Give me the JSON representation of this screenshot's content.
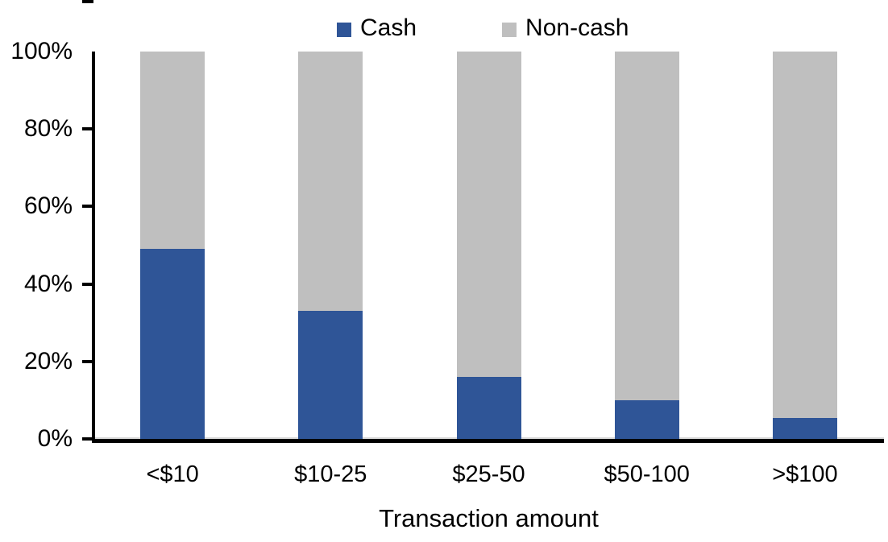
{
  "chart_data": {
    "type": "bar",
    "stacked": true,
    "orientation": "vertical",
    "categories": [
      "<$10",
      "$10-25",
      "$25-50",
      "$50-100",
      ">$100"
    ],
    "series": [
      {
        "name": "Cash",
        "color": "#2F5597",
        "values": [
          49,
          33,
          16,
          10,
          5.5
        ]
      },
      {
        "name": "Non-cash",
        "color": "#BFBFBF",
        "values": [
          51,
          67,
          84,
          90,
          94.5
        ]
      }
    ],
    "title": "",
    "xlabel": "Transaction amount",
    "ylabel": "",
    "ylim": [
      0,
      100
    ],
    "y_tick_labels": [
      "100%",
      "80%",
      "60%",
      "40%",
      "20%",
      "0%"
    ],
    "y_tick_step_percent": 20,
    "legend_position": "top",
    "grid": false,
    "axis_color": "#000000",
    "background_color": "#FFFFFF"
  }
}
